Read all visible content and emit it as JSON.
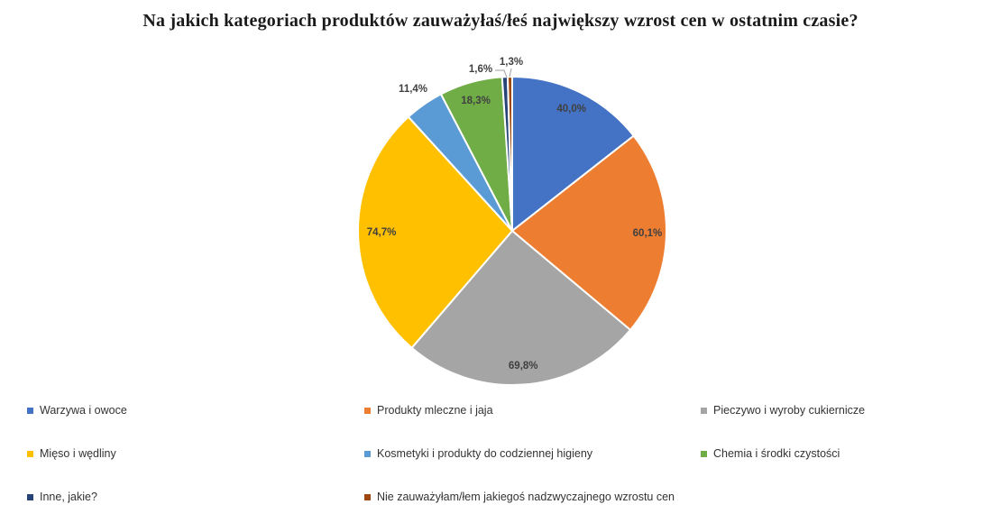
{
  "title": "Na jakich kategoriach produktów zauważyłaś/łeś największy wzrost cen w ostatnim czasie?",
  "chart_data": {
    "type": "pie",
    "title": "Na jakich kategoriach produktów zauważyłaś/łeś największy wzrost cen w ostatnim czasie?",
    "categories": [
      "Warzywa i owoce",
      "Produkty mleczne i jaja",
      "Pieczywo i wyroby cukiernicze",
      "Mięso i wędliny",
      "Kosmetyki i produkty do codziennej higieny",
      "Chemia i środki czystości",
      "Inne, jakie?",
      "Nie zauważyłam/łem jakiegoś nadzwyczajnego wzrostu cen"
    ],
    "values": [
      40.0,
      60.1,
      69.8,
      74.7,
      11.4,
      18.3,
      1.6,
      1.3
    ],
    "display_labels": [
      "40,0%",
      "60,1%",
      "69,8%",
      "74,7%",
      "11,4%",
      "18,3%",
      "1,6%",
      "1,3%"
    ],
    "colors": [
      "#4472C4",
      "#ED7D31",
      "#A5A5A5",
      "#FFC000",
      "#5B9BD5",
      "#70AD47",
      "#264478",
      "#9E480E"
    ],
    "label_color": "#404040",
    "start_angle_deg": 0,
    "direction": "clockwise",
    "legend_position": "bottom",
    "grid": "off"
  }
}
